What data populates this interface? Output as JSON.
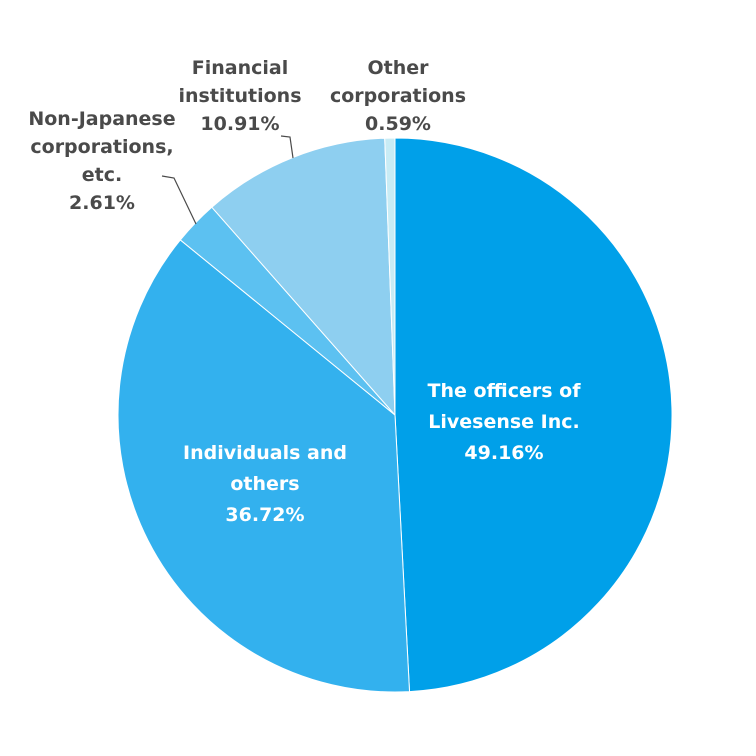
{
  "chart_data": {
    "type": "pie",
    "start_angle_deg": 0,
    "direction": "clockwise",
    "slices": [
      {
        "label_lines": [
          "The officers of",
          "Livesense Inc."
        ],
        "value_text": "49.16%",
        "value": 49.16,
        "color": "#00a0e9",
        "label_placement": "inside"
      },
      {
        "label_lines": [
          "Individuals and",
          "others"
        ],
        "value_text": "36.72%",
        "value": 36.72,
        "color": "#33b1ee",
        "label_placement": "inside"
      },
      {
        "label_lines": [
          "Non-Japanese",
          "corporations,",
          "etc."
        ],
        "value_text": "2.61%",
        "value": 2.61,
        "color": "#5cc1f1",
        "label_placement": "outside"
      },
      {
        "label_lines": [
          "Financial",
          "institutions"
        ],
        "value_text": "10.91%",
        "value": 10.91,
        "color": "#8ecff0",
        "label_placement": "outside"
      },
      {
        "label_lines": [
          "Other",
          "corporations"
        ],
        "value_text": "0.59%",
        "value": 0.59,
        "color": "#c8ecf5",
        "label_placement": "outside"
      }
    ],
    "legend": "none"
  }
}
